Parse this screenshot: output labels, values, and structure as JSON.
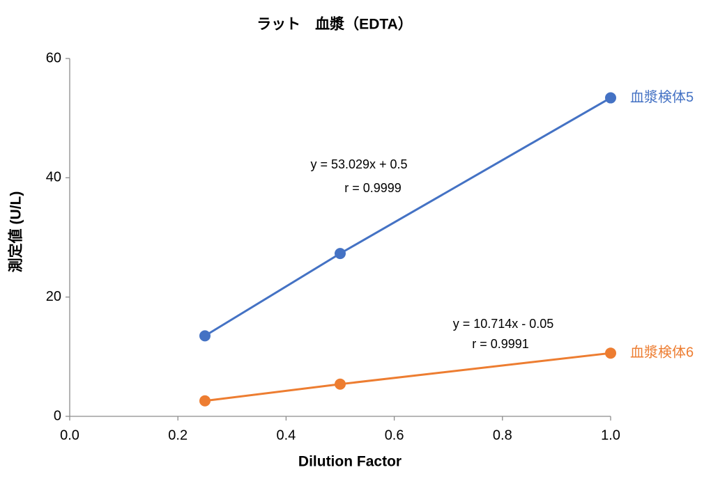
{
  "chart_data": {
    "type": "line",
    "title": "ラット　血漿（EDTA）",
    "x_label": "Dilution Factor",
    "y_label": "測定値 (U/L)",
    "x": [
      0.25,
      0.5,
      1.0
    ],
    "series": [
      {
        "name": "血漿検体5",
        "color": "#4472c4",
        "values": [
          13.5,
          27.3,
          53.4
        ]
      },
      {
        "name": "血漿検体6",
        "color": "#ed7d31",
        "values": [
          2.6,
          5.4,
          10.6
        ]
      }
    ],
    "annotations": [
      "y = 53.029x + 0.5",
      "r = 0.9999",
      "y = 10.714x - 0.05",
      "r = 0.9991"
    ],
    "xlim": [
      0,
      1
    ],
    "xticks": [
      {
        "value": 0,
        "label": "0.0"
      },
      {
        "value": 0.2,
        "label": "0.2"
      },
      {
        "value": 0.4,
        "label": "0.4"
      },
      {
        "value": 0.6,
        "label": "0.6"
      },
      {
        "value": 0.8,
        "label": "0.8"
      },
      {
        "value": 1,
        "label": "1.0"
      }
    ],
    "ylim": [
      0,
      60
    ],
    "yticks": [
      0,
      20,
      40,
      60
    ],
    "grid": false
  }
}
